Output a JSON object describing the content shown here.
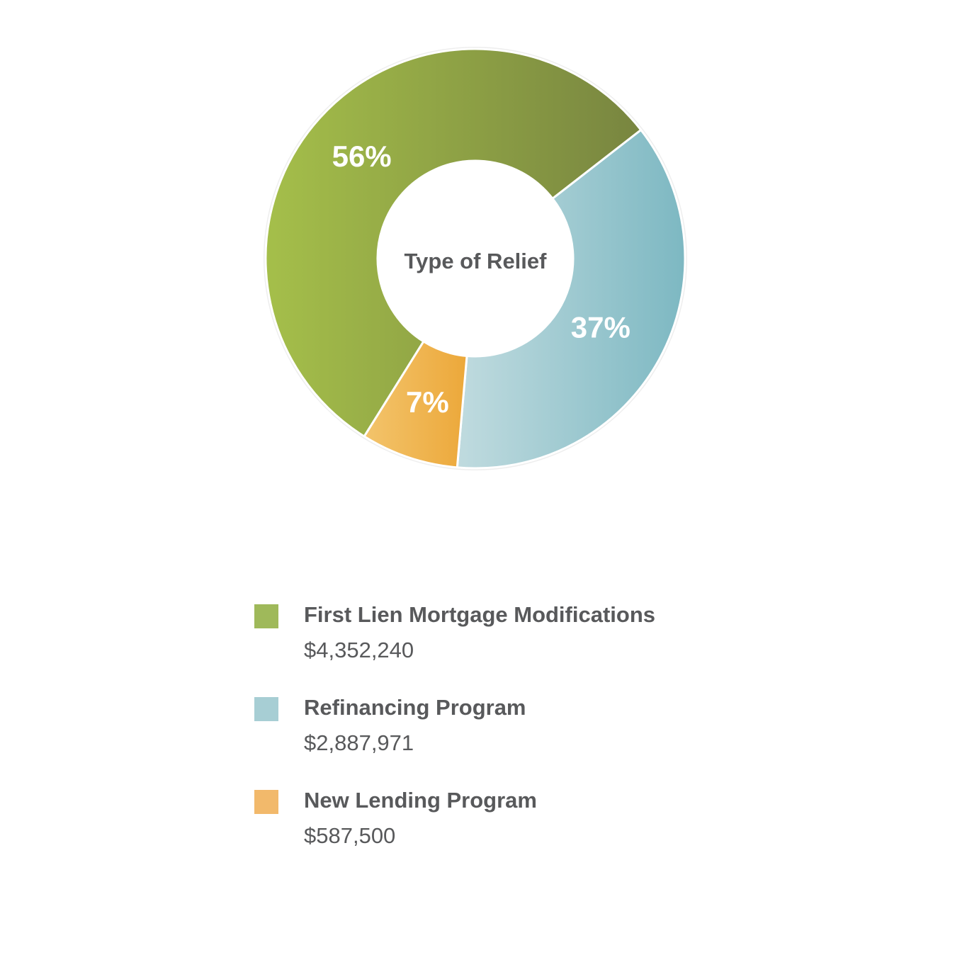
{
  "chart_data": {
    "type": "pie",
    "title": "Type of Relief",
    "series": [
      {
        "name": "First Lien Mortgage Modifications",
        "value": 4352240,
        "amount_label": "$4,352,240",
        "percent_label": "56%",
        "color_start": "#a5bf4a",
        "color_end": "#788540"
      },
      {
        "name": "Refinancing Program",
        "value": 2887971,
        "amount_label": "$2,887,971",
        "percent_label": "37%",
        "color_start": "#c0dbdf",
        "color_end": "#7db8c2"
      },
      {
        "name": "New Lending Program",
        "value": 587500,
        "amount_label": "$587,500",
        "percent_label": "7%",
        "color_start": "#f3c46c",
        "color_end": "#eca83a"
      }
    ],
    "legend_colors": [
      "#9fb95a",
      "#a7ced4",
      "#f2b96b"
    ],
    "legend_position": "bottom"
  }
}
